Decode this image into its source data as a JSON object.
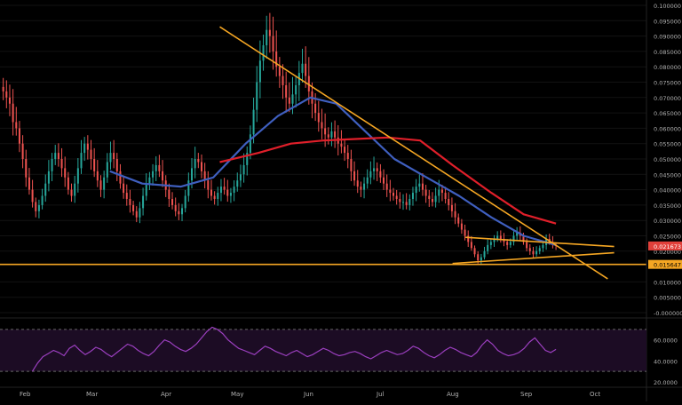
{
  "chart_data": {
    "type": "candlestick",
    "price_axis": {
      "ylim": [
        -2e-06,
        0.1
      ],
      "ticks": [
        "0.100000",
        "0.095000",
        "0.090000",
        "0.085000",
        "0.080000",
        "0.075000",
        "0.070000",
        "0.065000",
        "0.060000",
        "0.055000",
        "0.050000",
        "0.045000",
        "0.040000",
        "0.035000",
        "0.030000",
        "0.025000",
        "0.020000",
        "0.010000",
        "0.005000",
        "-0.000000"
      ],
      "last_price_label": "0.021673",
      "support_label": "0.015647"
    },
    "time_axis": {
      "labels": [
        "Feb",
        "Mar",
        "Apr",
        "May",
        "Jun",
        "Jul",
        "Aug",
        "Sep",
        "Oct"
      ]
    },
    "close_series": [
      0.072,
      0.07,
      0.068,
      0.062,
      0.06,
      0.055,
      0.05,
      0.044,
      0.04,
      0.036,
      0.033,
      0.035,
      0.038,
      0.042,
      0.046,
      0.05,
      0.052,
      0.05,
      0.047,
      0.044,
      0.04,
      0.038,
      0.042,
      0.047,
      0.052,
      0.055,
      0.053,
      0.05,
      0.046,
      0.043,
      0.04,
      0.044,
      0.049,
      0.052,
      0.05,
      0.046,
      0.042,
      0.039,
      0.037,
      0.035,
      0.033,
      0.031,
      0.034,
      0.038,
      0.042,
      0.044,
      0.046,
      0.048,
      0.046,
      0.043,
      0.04,
      0.037,
      0.035,
      0.033,
      0.032,
      0.034,
      0.038,
      0.043,
      0.047,
      0.05,
      0.049,
      0.046,
      0.043,
      0.04,
      0.038,
      0.037,
      0.039,
      0.041,
      0.04,
      0.038,
      0.039,
      0.041,
      0.043,
      0.045,
      0.048,
      0.052,
      0.058,
      0.066,
      0.075,
      0.082,
      0.087,
      0.092,
      0.09,
      0.085,
      0.08,
      0.077,
      0.074,
      0.07,
      0.068,
      0.071,
      0.074,
      0.078,
      0.081,
      0.077,
      0.072,
      0.068,
      0.065,
      0.062,
      0.06,
      0.058,
      0.057,
      0.059,
      0.057,
      0.055,
      0.054,
      0.052,
      0.05,
      0.046,
      0.043,
      0.041,
      0.04,
      0.042,
      0.044,
      0.046,
      0.047,
      0.046,
      0.044,
      0.042,
      0.04,
      0.039,
      0.038,
      0.037,
      0.036,
      0.036,
      0.035,
      0.037,
      0.039,
      0.041,
      0.042,
      0.04,
      0.038,
      0.037,
      0.036,
      0.038,
      0.04,
      0.039,
      0.037,
      0.035,
      0.033,
      0.031,
      0.029,
      0.027,
      0.025,
      0.023,
      0.021,
      0.019,
      0.017,
      0.018,
      0.02,
      0.022,
      0.023,
      0.024,
      0.025,
      0.024,
      0.023,
      0.022,
      0.023,
      0.025,
      0.026,
      0.025,
      0.023,
      0.021,
      0.02,
      0.019,
      0.02,
      0.021,
      0.022,
      0.024,
      0.023,
      0.022,
      0.0217
    ],
    "ma_blue": {
      "color": "#3f5fbf",
      "points": [
        [
          0.17,
          0.046
        ],
        [
          0.22,
          0.042
        ],
        [
          0.28,
          0.041
        ],
        [
          0.33,
          0.044
        ],
        [
          0.38,
          0.055
        ],
        [
          0.43,
          0.064
        ],
        [
          0.48,
          0.07
        ],
        [
          0.52,
          0.068
        ],
        [
          0.56,
          0.06
        ],
        [
          0.61,
          0.05
        ],
        [
          0.66,
          0.044
        ],
        [
          0.71,
          0.038
        ],
        [
          0.76,
          0.031
        ],
        [
          0.81,
          0.025
        ],
        [
          0.86,
          0.022
        ]
      ]
    },
    "ma_red": {
      "color": "#e01f2a",
      "points": [
        [
          0.34,
          0.049
        ],
        [
          0.4,
          0.052
        ],
        [
          0.45,
          0.055
        ],
        [
          0.5,
          0.056
        ],
        [
          0.55,
          0.0565
        ],
        [
          0.6,
          0.057
        ],
        [
          0.65,
          0.056
        ],
        [
          0.7,
          0.048
        ],
        [
          0.76,
          0.039
        ],
        [
          0.81,
          0.032
        ],
        [
          0.86,
          0.029
        ]
      ]
    },
    "trendlines": [
      {
        "from": [
          0.34,
          0.093
        ],
        "to": [
          0.94,
          0.011
        ]
      },
      {
        "from": [
          0.72,
          0.0245
        ],
        "to": [
          0.95,
          0.0215
        ]
      },
      {
        "from": [
          0.7,
          0.016
        ],
        "to": [
          0.95,
          0.0195
        ]
      }
    ],
    "support_level": 0.0157,
    "rsi": {
      "ticks": [
        "60.0000",
        "40.0000",
        "20.0000"
      ],
      "upper_band": 70,
      "lower_band": 30,
      "color": "#9b3fbf",
      "values": [
        30,
        38,
        44,
        47,
        50,
        48,
        45,
        52,
        55,
        50,
        46,
        49,
        53,
        51,
        47,
        44,
        48,
        52,
        56,
        54,
        50,
        47,
        45,
        49,
        55,
        60,
        58,
        54,
        51,
        49,
        52,
        56,
        62,
        68,
        72,
        70,
        66,
        60,
        56,
        52,
        50,
        48,
        46,
        50,
        54,
        52,
        49,
        47,
        45,
        48,
        50,
        47,
        44,
        46,
        49,
        52,
        50,
        47,
        45,
        46,
        48,
        49,
        47,
        44,
        42,
        45,
        48,
        50,
        48,
        46,
        47,
        50,
        54,
        52,
        48,
        45,
        43,
        46,
        50,
        53,
        51,
        48,
        46,
        44,
        48,
        55,
        60,
        56,
        50,
        47,
        45,
        46,
        48,
        52,
        58,
        62,
        56,
        50,
        48,
        51
      ]
    },
    "colors": {
      "bull": "#26a69a",
      "bear": "#ef5350",
      "trendline": "#f5a623",
      "support": "#f5a623",
      "price_label_bg": "#e0403a",
      "support_label_bg": "#f5a623",
      "axis_text": "#b0b0b0"
    }
  }
}
